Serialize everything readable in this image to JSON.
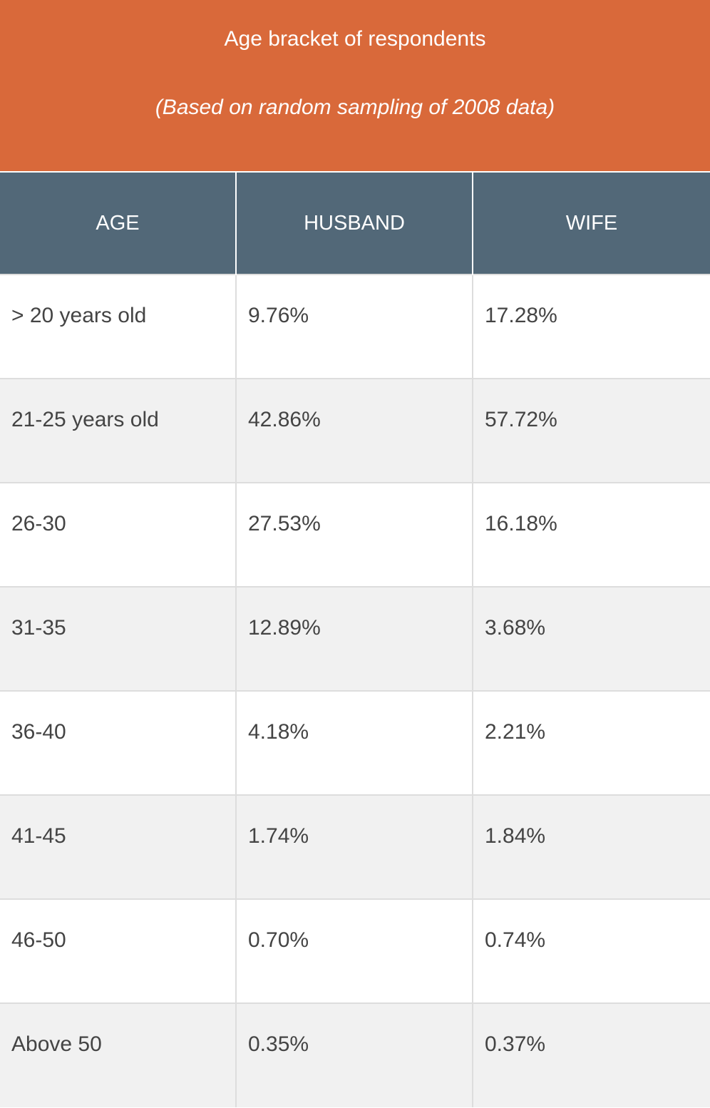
{
  "chart_data": {
    "type": "table",
    "title": "Age bracket of respondents",
    "subtitle": "(Based on random sampling of 2008 data)",
    "columns": [
      "AGE",
      "HUSBAND",
      "WIFE"
    ],
    "rows": [
      [
        "> 20 years old",
        "9.76%",
        "17.28%"
      ],
      [
        "21-25 years old",
        "42.86%",
        "57.72%"
      ],
      [
        "26-30",
        "27.53%",
        "16.18%"
      ],
      [
        "31-35",
        "12.89%",
        "3.68%"
      ],
      [
        "36-40",
        "4.18%",
        "2.21%"
      ],
      [
        "41-45",
        "1.74%",
        "1.84%"
      ],
      [
        "46-50",
        "0.70%",
        "0.74%"
      ],
      [
        "Above 50",
        "0.35%",
        "0.37%"
      ]
    ]
  },
  "colors": {
    "banner": "#d9693a",
    "header": "#526878",
    "row_alt": "#f1f1f1",
    "text": "#444444"
  }
}
